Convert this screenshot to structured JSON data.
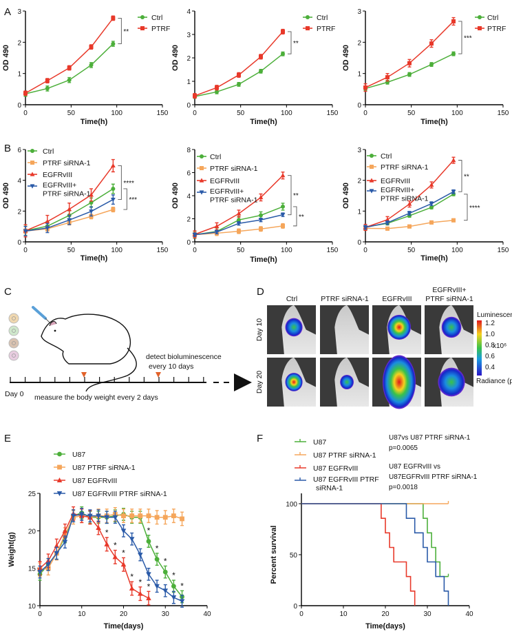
{
  "panels": [
    "A",
    "B",
    "C",
    "D",
    "E",
    "F"
  ],
  "schematic": {
    "detect_line1": "detect bioluminescence",
    "detect_line2": "every 10 days",
    "day0": "Day 0",
    "measure": "measure the body weight every 2 days",
    "marker_color": "#e2622a"
  },
  "imaging": {
    "columns": [
      "Ctrl",
      "PTRF siRNA-1",
      "EGFRvIII",
      "EGFRvIII+",
      "PTRF siRNA-1"
    ],
    "rows": [
      "Day 10",
      "Day 20"
    ],
    "signal_size": [
      [
        0.35,
        0,
        0.6,
        0.45
      ],
      [
        0.35,
        0.2,
        1.0,
        0.75
      ]
    ],
    "signal_peak": [
      [
        0.5,
        0,
        1.0,
        0.6
      ],
      [
        0.75,
        0.3,
        1.0,
        0.55
      ]
    ],
    "colorbar_title": "Luminescence",
    "colorbar_ticks": [
      "1.2",
      "1.0",
      "0.8",
      "0.6",
      "0.4"
    ],
    "colorbar_unit": "x10⁶",
    "colorbar_footer": "Radiance (p/sec/cm²/sr)"
  },
  "chart_data": [
    {
      "type": "line",
      "panel": "A",
      "xlabel": "Time(h)",
      "ylabel": "OD 490",
      "xlim": [
        0,
        150
      ],
      "ylim": [
        0,
        3
      ],
      "xticks": [
        0,
        50,
        100,
        150
      ],
      "yticks": [
        0,
        1,
        2,
        3
      ],
      "series": [
        {
          "name": "Ctrl",
          "color": "#4caf3a",
          "marker": "circle",
          "x": [
            0,
            24,
            48,
            72,
            96
          ],
          "y": [
            0.35,
            0.52,
            0.79,
            1.27,
            1.95
          ],
          "err": 0.08
        },
        {
          "name": "PTRF",
          "color": "#e8392a",
          "marker": "square",
          "x": [
            0,
            24,
            48,
            72,
            96
          ],
          "y": [
            0.37,
            0.77,
            1.18,
            1.85,
            2.77
          ],
          "err": 0.07
        }
      ],
      "significance": [
        {
          "text": "**",
          "between": [
            1,
            0
          ]
        }
      ]
    },
    {
      "type": "line",
      "panel": "A",
      "xlabel": "Time(h)",
      "ylabel": "OD 490",
      "xlim": [
        0,
        150
      ],
      "ylim": [
        0,
        4
      ],
      "xticks": [
        0,
        50,
        100,
        150
      ],
      "yticks": [
        0,
        1,
        2,
        3,
        4
      ],
      "series": [
        {
          "name": "Ctrl",
          "color": "#4caf3a",
          "marker": "circle",
          "x": [
            0,
            24,
            48,
            72,
            96
          ],
          "y": [
            0.35,
            0.55,
            0.87,
            1.43,
            2.17
          ],
          "err": 0.08
        },
        {
          "name": "PTRF",
          "color": "#e8392a",
          "marker": "square",
          "x": [
            0,
            24,
            48,
            72,
            96
          ],
          "y": [
            0.38,
            0.73,
            1.27,
            2.05,
            3.12
          ],
          "err": 0.1
        }
      ],
      "significance": [
        {
          "text": "**",
          "between": [
            1,
            0
          ]
        }
      ]
    },
    {
      "type": "line",
      "panel": "A",
      "xlabel": "Time(h)",
      "ylabel": "OD 490",
      "xlim": [
        0,
        150
      ],
      "ylim": [
        0,
        3
      ],
      "xticks": [
        0,
        50,
        100,
        150
      ],
      "yticks": [
        0,
        1,
        2,
        3
      ],
      "series": [
        {
          "name": "Ctrl",
          "color": "#4caf3a",
          "marker": "circle",
          "x": [
            0,
            24,
            48,
            72,
            96
          ],
          "y": [
            0.52,
            0.72,
            0.97,
            1.29,
            1.63
          ],
          "err": 0.06
        },
        {
          "name": "PTRF",
          "color": "#e8392a",
          "marker": "square",
          "x": [
            0,
            24,
            48,
            72,
            96
          ],
          "y": [
            0.55,
            0.88,
            1.33,
            1.96,
            2.67
          ],
          "err": 0.12
        }
      ],
      "significance": [
        {
          "text": "***",
          "between": [
            1,
            0
          ]
        }
      ]
    },
    {
      "type": "line",
      "panel": "B",
      "xlabel": "Time(h)",
      "ylabel": "OD 490",
      "xlim": [
        0,
        150
      ],
      "ylim": [
        0,
        6
      ],
      "xticks": [
        0,
        50,
        100,
        150
      ],
      "yticks": [
        0,
        2,
        4,
        6
      ],
      "series": [
        {
          "name": "Ctrl",
          "color": "#4caf3a",
          "marker": "circle",
          "x": [
            0,
            24,
            48,
            72,
            96
          ],
          "y": [
            0.72,
            1.02,
            1.72,
            2.55,
            3.45
          ],
          "err": 0.3
        },
        {
          "name": "PTRF siRNA-1",
          "color": "#f5a65b",
          "marker": "square",
          "x": [
            0,
            24,
            48,
            72,
            96
          ],
          "y": [
            0.7,
            0.85,
            1.25,
            1.65,
            2.1
          ],
          "err": 0.15
        },
        {
          "name": "EGFRvIII",
          "color": "#e8392a",
          "marker": "triangle-up",
          "x": [
            0,
            24,
            48,
            72,
            96
          ],
          "y": [
            0.72,
            1.32,
            2.12,
            3.05,
            4.95
          ],
          "err": 0.4
        },
        {
          "name": "EGFRvIII+ PTRF siRNA-1",
          "color": "#2a5aa8",
          "marker": "triangle-down",
          "x": [
            0,
            24,
            48,
            72,
            96
          ],
          "y": [
            0.7,
            0.9,
            1.42,
            1.98,
            2.75
          ],
          "err": 0.3
        }
      ],
      "significance": [
        {
          "text": "****",
          "between": [
            2,
            3
          ]
        },
        {
          "text": "***",
          "between": [
            0,
            1
          ]
        }
      ]
    },
    {
      "type": "line",
      "panel": "B",
      "xlabel": "Time(h)",
      "ylabel": "OD 490",
      "xlim": [
        0,
        150
      ],
      "ylim": [
        0,
        8
      ],
      "xticks": [
        0,
        50,
        100,
        150
      ],
      "yticks": [
        0,
        2,
        4,
        6,
        8
      ],
      "series": [
        {
          "name": "Ctrl",
          "color": "#4caf3a",
          "marker": "circle",
          "x": [
            0,
            24,
            48,
            72,
            96
          ],
          "y": [
            0.62,
            0.9,
            1.9,
            2.3,
            3.05
          ],
          "err": 0.3
        },
        {
          "name": "PTRF siRNA-1",
          "color": "#f5a65b",
          "marker": "square",
          "x": [
            0,
            24,
            48,
            72,
            96
          ],
          "y": [
            0.62,
            0.75,
            0.92,
            1.12,
            1.38
          ],
          "err": 0.2
        },
        {
          "name": "EGFRvIII",
          "color": "#e8392a",
          "marker": "triangle-up",
          "x": [
            0,
            24,
            48,
            72,
            96
          ],
          "y": [
            0.65,
            1.35,
            2.45,
            3.85,
            5.75
          ],
          "err": 0.3
        },
        {
          "name": "EGFRvIII+ PTRF siRNA-1",
          "color": "#2a5aa8",
          "marker": "triangle-down",
          "x": [
            0,
            24,
            48,
            72,
            96
          ],
          "y": [
            0.62,
            0.85,
            1.6,
            1.9,
            2.35
          ],
          "err": 0.15
        }
      ],
      "significance": [
        {
          "text": "**",
          "between": [
            2,
            3
          ]
        },
        {
          "text": "**",
          "between": [
            0,
            1
          ]
        }
      ]
    },
    {
      "type": "line",
      "panel": "B",
      "xlabel": "Time(h)",
      "ylabel": "OD 490",
      "xlim": [
        0,
        150
      ],
      "ylim": [
        0,
        3
      ],
      "xticks": [
        0,
        50,
        100,
        150
      ],
      "yticks": [
        0,
        1,
        2,
        3
      ],
      "series": [
        {
          "name": "Ctrl",
          "color": "#4caf3a",
          "marker": "circle",
          "x": [
            0,
            24,
            48,
            72,
            96
          ],
          "y": [
            0.48,
            0.6,
            0.85,
            1.12,
            1.55
          ],
          "err": 0.05
        },
        {
          "name": "PTRF siRNA-1",
          "color": "#f5a65b",
          "marker": "square",
          "x": [
            0,
            24,
            48,
            72,
            96
          ],
          "y": [
            0.44,
            0.43,
            0.5,
            0.63,
            0.7
          ],
          "err": 0.05
        },
        {
          "name": "EGFRvIII",
          "color": "#e8392a",
          "marker": "triangle-up",
          "x": [
            0,
            24,
            48,
            72,
            96
          ],
          "y": [
            0.47,
            0.72,
            1.23,
            1.85,
            2.65
          ],
          "err": 0.1
        },
        {
          "name": "EGFRvIII+ PTRF siRNA-1",
          "color": "#2a5aa8",
          "marker": "triangle-down",
          "x": [
            0,
            24,
            48,
            72,
            96
          ],
          "y": [
            0.47,
            0.62,
            0.93,
            1.24,
            1.63
          ],
          "err": 0.06
        }
      ],
      "significance": [
        {
          "text": "**",
          "between": [
            2,
            3
          ]
        },
        {
          "text": "****",
          "between": [
            0,
            1
          ]
        }
      ]
    },
    {
      "type": "line",
      "panel": "E",
      "xlabel": "Time(days)",
      "ylabel": "Weight(g)",
      "xlim": [
        0,
        40
      ],
      "ylim": [
        10,
        25
      ],
      "xticks": [
        0,
        10,
        20,
        30,
        40
      ],
      "yticks": [
        10,
        15,
        20,
        25
      ],
      "series": [
        {
          "name": "U87",
          "color": "#4caf3a",
          "marker": "circle",
          "x": [
            0,
            2,
            4,
            6,
            8,
            10,
            12,
            14,
            16,
            18,
            20,
            22,
            24,
            26,
            28,
            30,
            32,
            34
          ],
          "y": [
            14.2,
            15.5,
            17,
            19.2,
            22,
            22.4,
            21.8,
            21.8,
            21.8,
            22,
            22.2,
            21.8,
            21.8,
            18.6,
            16.2,
            14.5,
            12.6,
            11.2
          ],
          "err": 0.8,
          "stars": [
            26,
            28,
            30,
            32,
            34
          ]
        },
        {
          "name": "U87 PTRF siRNA-1",
          "color": "#f5a65b",
          "marker": "square",
          "x": [
            0,
            2,
            4,
            6,
            8,
            10,
            12,
            14,
            16,
            18,
            20,
            22,
            24,
            26,
            28,
            30,
            32,
            34
          ],
          "y": [
            14.8,
            15,
            17,
            19.5,
            21.8,
            22,
            21.8,
            22,
            22,
            22.2,
            22,
            22,
            22,
            22,
            21.8,
            21.8,
            22,
            21.6
          ],
          "err": 0.9
        },
        {
          "name": "U87 EGFRvIII",
          "color": "#e8392a",
          "marker": "triangle-up",
          "x": [
            0,
            2,
            4,
            6,
            8,
            10,
            12,
            14,
            16,
            18,
            20,
            22,
            24,
            26
          ],
          "y": [
            15,
            16,
            18,
            20,
            22.3,
            22,
            21.8,
            20.4,
            18.2,
            16.5,
            15.5,
            12.3,
            11.6,
            11
          ],
          "err": 0.9,
          "stars": [
            16,
            18,
            20,
            22,
            24,
            26
          ]
        },
        {
          "name": "U87 EGFRvIII PTRF siRNA-1",
          "color": "#2a5aa8",
          "marker": "triangle-down",
          "x": [
            0,
            2,
            4,
            6,
            8,
            10,
            12,
            14,
            16,
            18,
            20,
            22,
            24,
            26,
            28,
            30,
            32,
            34
          ],
          "y": [
            14.5,
            15.5,
            17,
            18.5,
            22,
            22.2,
            22,
            22,
            21.8,
            21.8,
            20,
            18.9,
            16.8,
            14.2,
            12.6,
            12,
            11.1,
            10.6
          ],
          "err": 0.8
        }
      ],
      "significance": []
    },
    {
      "type": "survival",
      "panel": "F",
      "xlabel": "Time(days)",
      "ylabel": "Percent survival",
      "xlim": [
        0,
        40
      ],
      "ylim": [
        0,
        100
      ],
      "xticks": [
        0,
        10,
        20,
        30,
        40
      ],
      "yticks": [
        0,
        50,
        100
      ],
      "series": [
        {
          "name": "U87",
          "color": "#4caf3a",
          "x": [
            0,
            29,
            30,
            31,
            32,
            33,
            35
          ],
          "y": [
            100,
            85.7,
            71.4,
            57.1,
            42.9,
            28.6,
            28.6
          ],
          "censored_end": true
        },
        {
          "name": "U87 PTRF siRNA-1",
          "color": "#f5a65b",
          "x": [
            0,
            35
          ],
          "y": [
            100,
            100
          ],
          "censored_end": true
        },
        {
          "name": "U87 EGFRvIII",
          "color": "#e8392a",
          "x": [
            0,
            19,
            20,
            21,
            22,
            25,
            26,
            27
          ],
          "y": [
            100,
            85.7,
            71.4,
            57.1,
            42.9,
            28.6,
            14.3,
            0
          ]
        },
        {
          "name": "U87 EGFRvIII PTRF siRNA-1",
          "color": "#2a5aa8",
          "x": [
            0,
            25,
            27,
            29,
            30,
            32,
            34,
            35
          ],
          "y": [
            100,
            85.7,
            71.4,
            57.1,
            42.9,
            28.6,
            14.3,
            0
          ]
        }
      ],
      "annotations": [
        "U87vs U87 PTRF siRNA-1",
        "p=0.0065",
        "U87 EGFRvIII vs",
        "U87EGFRvIII PTRF siRNA-1",
        "p=0.0018"
      ]
    }
  ]
}
